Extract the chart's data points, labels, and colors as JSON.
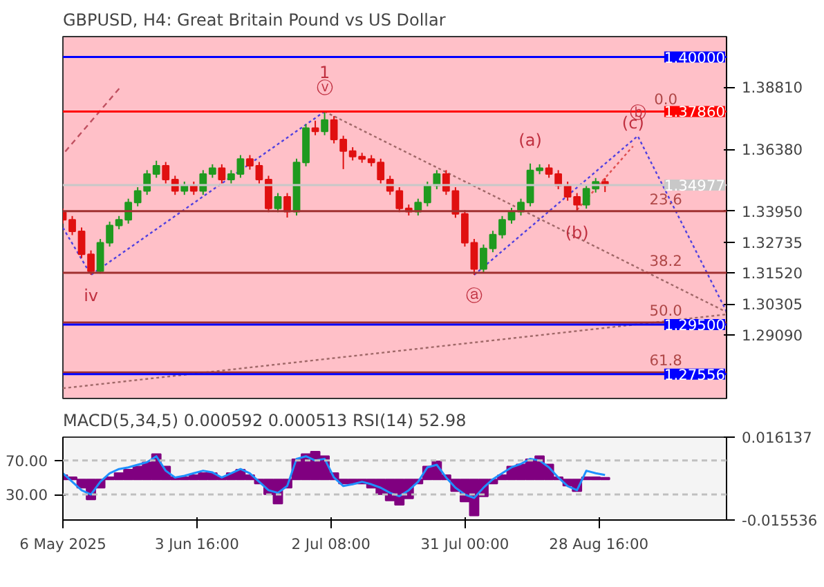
{
  "chart_data": [
    {
      "type": "candlestick",
      "title": "GBPUSD, H4:  Great Britain Pound vs US Dollar",
      "x": [
        "2025-05-06",
        "2025-05-08",
        "2025-05-10",
        "2025-05-12",
        "2025-05-14",
        "2025-05-16",
        "2025-05-18",
        "2025-05-20",
        "2025-05-22",
        "2025-05-24",
        "2025-05-26",
        "2025-05-28",
        "2025-05-30",
        "2025-06-01",
        "2025-06-03",
        "2025-06-05",
        "2025-06-07",
        "2025-06-09",
        "2025-06-11",
        "2025-06-13",
        "2025-06-15",
        "2025-06-17",
        "2025-06-19",
        "2025-06-21",
        "2025-06-23",
        "2025-06-25",
        "2025-06-27",
        "2025-06-29",
        "2025-07-01",
        "2025-07-03",
        "2025-07-05",
        "2025-07-07",
        "2025-07-09",
        "2025-07-11",
        "2025-07-13",
        "2025-07-15",
        "2025-07-17",
        "2025-07-19",
        "2025-07-21",
        "2025-07-23",
        "2025-07-25",
        "2025-07-27",
        "2025-07-29",
        "2025-07-31",
        "2025-08-02",
        "2025-08-04",
        "2025-08-06",
        "2025-08-08",
        "2025-08-10",
        "2025-08-12",
        "2025-08-14",
        "2025-08-16",
        "2025-08-18",
        "2025-08-20",
        "2025-08-22",
        "2025-08-24",
        "2025-08-26",
        "2025-08-28",
        "2025-08-30"
      ],
      "ohlc": [
        [
          1.339,
          1.3405,
          1.3346,
          1.3361
        ],
        [
          1.3361,
          1.3376,
          1.3301,
          1.3316
        ],
        [
          1.3316,
          1.3331,
          1.3211,
          1.3226
        ],
        [
          1.3226,
          1.3241,
          1.3145,
          1.3159
        ],
        [
          1.3159,
          1.3286,
          1.315,
          1.3271
        ],
        [
          1.3271,
          1.3354,
          1.3256,
          1.3339
        ],
        [
          1.3339,
          1.3376,
          1.3324,
          1.3361
        ],
        [
          1.3361,
          1.3444,
          1.3346,
          1.3429
        ],
        [
          1.3429,
          1.3489,
          1.3414,
          1.3474
        ],
        [
          1.3474,
          1.3556,
          1.3459,
          1.3541
        ],
        [
          1.3541,
          1.3593,
          1.3526,
          1.3573
        ],
        [
          1.3573,
          1.3588,
          1.3504,
          1.3519
        ],
        [
          1.3519,
          1.3534,
          1.3459,
          1.3474
        ],
        [
          1.3474,
          1.3511,
          1.3459,
          1.3496
        ],
        [
          1.3496,
          1.3511,
          1.3459,
          1.3474
        ],
        [
          1.3474,
          1.3556,
          1.3459,
          1.3541
        ],
        [
          1.3541,
          1.3579,
          1.3526,
          1.3564
        ],
        [
          1.3564,
          1.3579,
          1.3504,
          1.3519
        ],
        [
          1.3519,
          1.3556,
          1.3504,
          1.3541
        ],
        [
          1.3541,
          1.3615,
          1.3526,
          1.36
        ],
        [
          1.36,
          1.3615,
          1.3558,
          1.3573
        ],
        [
          1.3573,
          1.3588,
          1.3504,
          1.3519
        ],
        [
          1.3519,
          1.3534,
          1.3391,
          1.3406
        ],
        [
          1.3406,
          1.3466,
          1.3391,
          1.3451
        ],
        [
          1.3451,
          1.3466,
          1.337,
          1.3393
        ],
        [
          1.3393,
          1.3601,
          1.3378,
          1.3586
        ],
        [
          1.3586,
          1.3736,
          1.3571,
          1.3721
        ],
        [
          1.3721,
          1.375,
          1.3693,
          1.3708
        ],
        [
          1.3708,
          1.3786,
          1.3693,
          1.3753
        ],
        [
          1.3753,
          1.3768,
          1.3661,
          1.3676
        ],
        [
          1.3676,
          1.3691,
          1.356,
          1.3631
        ],
        [
          1.3631,
          1.3646,
          1.3594,
          1.3609
        ],
        [
          1.3609,
          1.3624,
          1.3585,
          1.36
        ],
        [
          1.36,
          1.3615,
          1.3571,
          1.3586
        ],
        [
          1.3586,
          1.3601,
          1.3504,
          1.3519
        ],
        [
          1.3519,
          1.3534,
          1.3459,
          1.3474
        ],
        [
          1.3474,
          1.3489,
          1.3391,
          1.3406
        ],
        [
          1.3406,
          1.3421,
          1.3378,
          1.3393
        ],
        [
          1.3393,
          1.3444,
          1.3378,
          1.3429
        ],
        [
          1.3429,
          1.3511,
          1.3414,
          1.3496
        ],
        [
          1.3496,
          1.3556,
          1.3481,
          1.3541
        ],
        [
          1.3541,
          1.3556,
          1.3459,
          1.3474
        ],
        [
          1.3474,
          1.3489,
          1.3369,
          1.3384
        ],
        [
          1.3384,
          1.3399,
          1.3256,
          1.3271
        ],
        [
          1.3271,
          1.3286,
          1.3145,
          1.3168
        ],
        [
          1.3168,
          1.3264,
          1.3153,
          1.3249
        ],
        [
          1.3249,
          1.3318,
          1.3234,
          1.3303
        ],
        [
          1.3303,
          1.3376,
          1.3288,
          1.3361
        ],
        [
          1.3361,
          1.3408,
          1.3346,
          1.3393
        ],
        [
          1.3393,
          1.3444,
          1.3378,
          1.3429
        ],
        [
          1.3429,
          1.3582,
          1.3414,
          1.3555
        ],
        [
          1.3555,
          1.3579,
          1.354,
          1.3564
        ],
        [
          1.3564,
          1.3579,
          1.3526,
          1.3541
        ],
        [
          1.3541,
          1.3556,
          1.3481,
          1.3496
        ],
        [
          1.3496,
          1.3511,
          1.3436,
          1.3451
        ],
        [
          1.3451,
          1.3466,
          1.3393,
          1.342
        ],
        [
          1.342,
          1.3498,
          1.3405,
          1.3483
        ],
        [
          1.3483,
          1.3525,
          1.3468,
          1.351
        ],
        [
          1.351,
          1.3525,
          1.347,
          1.3497
        ]
      ],
      "series": [
        {
          "type": "line",
          "x": [
            "2025-05-06",
            "2025-05-12",
            "2025-07-01"
          ],
          "values": [
            1.333,
            1.3145,
            1.3786
          ],
          "color": "#5040e0",
          "line_style": "dotted"
        },
        {
          "type": "line",
          "x": [
            "2025-08-02",
            "2025-09-06",
            "2025-09-25"
          ],
          "values": [
            1.3145,
            1.369,
            1.3001
          ],
          "color": "#5040e0",
          "line_style": "dotted"
        },
        {
          "type": "line",
          "x": [
            "2025-08-24",
            "2025-09-05"
          ],
          "values": [
            1.34,
            1.365
          ],
          "color": "#e05050",
          "line_style": "dotted"
        },
        {
          "type": "line",
          "x": [
            "2025-07-01",
            "2025-09-25"
          ],
          "values": [
            1.3786,
            1.2999
          ],
          "color": "#a06868",
          "line_style": "dotted"
        },
        {
          "type": "line",
          "x": [
            "2025-05-06",
            "2025-09-25"
          ],
          "values": [
            1.27,
            1.299
          ],
          "color": "#a06868",
          "line_style": "dotted"
        },
        {
          "type": "line",
          "x": [
            "2025-05-06T12:00",
            "2025-05-18T12:00"
          ],
          "values": [
            1.3629,
            1.3886
          ],
          "color": "#c05060",
          "line_style": "dashed"
        }
      ],
      "xlim": [
        "2025-05-06",
        "2025-09-25"
      ],
      "ylim": [
        1.266,
        1.408
      ],
      "yticks": [
        {
          "value": 1.3881,
          "label": "1.38810"
        },
        {
          "value": 1.3638,
          "label": "1.36380"
        },
        {
          "value": 1.3395,
          "label": "1.33950"
        },
        {
          "value": 1.32735,
          "label": "1.32735"
        },
        {
          "value": 1.3152,
          "label": "1.31520"
        },
        {
          "value": 1.30305,
          "label": "1.30305"
        },
        {
          "value": 1.2909,
          "label": "1.29090"
        }
      ],
      "tick_labels": "y",
      "grid": false,
      "ref_lines": [
        {
          "axis": "y",
          "value": 1.4,
          "label": "1.40000",
          "color": "#0000ff"
        },
        {
          "axis": "y",
          "value": 1.3786,
          "label": "1.37860",
          "color": "#ff0000"
        },
        {
          "axis": "y",
          "value": 1.34977,
          "label": "1.34977",
          "color": "#c8c8c8"
        },
        {
          "axis": "y",
          "value": 1.3395,
          "color": "#a03030"
        },
        {
          "axis": "y",
          "value": 1.3153,
          "color": "#a03030"
        },
        {
          "axis": "y",
          "value": 1.2958,
          "color": "#a03030"
        },
        {
          "axis": "y",
          "value": 1.2762,
          "color": "#a03030"
        },
        {
          "axis": "y",
          "value": 1.295,
          "label": "1.29500",
          "color": "#0000ff"
        },
        {
          "axis": "y",
          "value": 1.27556,
          "label": "1.27556",
          "color": "#0000ff"
        }
      ],
      "annotations": [
        {
          "text": "0.0",
          "x": "2025-09-12",
          "y": 1.3786
        },
        {
          "text": "23.6",
          "x": "2025-09-12",
          "y": 1.3395
        },
        {
          "text": "38.2",
          "x": "2025-09-12",
          "y": 1.3153
        },
        {
          "text": "50.0",
          "x": "2025-09-12",
          "y": 1.2958
        },
        {
          "text": "61.8",
          "x": "2025-09-12",
          "y": 1.2762
        },
        {
          "text": "ⓥ",
          "x": "2025-07-01",
          "y": 1.3786
        },
        {
          "text": "1",
          "x": "2025-07-01",
          "y": 1.3786
        },
        {
          "text": "iv",
          "x": "2025-05-12",
          "y": 1.3145
        },
        {
          "text": "ⓐ",
          "x": "2025-08-02",
          "y": 1.3145
        },
        {
          "text": "(a)",
          "x": "2025-08-14",
          "y": 1.3582
        },
        {
          "text": "(b)",
          "x": "2025-08-24",
          "y": 1.3393
        },
        {
          "text": "(c)",
          "x": "2025-09-05",
          "y": 1.365
        },
        {
          "text": "ⓑ",
          "x": "2025-09-06",
          "y": 1.369
        }
      ]
    },
    {
      "type": "bar",
      "title": "MACD(5,34,5) 0.000592 0.000513 RSI(14) 52.98",
      "x": [
        "2025-05-06",
        "2025-05-08",
        "2025-05-10",
        "2025-05-12",
        "2025-05-14",
        "2025-05-16",
        "2025-05-18",
        "2025-05-20",
        "2025-05-22",
        "2025-05-24",
        "2025-05-26",
        "2025-05-28",
        "2025-05-30",
        "2025-06-01",
        "2025-06-03",
        "2025-06-05",
        "2025-06-07",
        "2025-06-09",
        "2025-06-11",
        "2025-06-13",
        "2025-06-15",
        "2025-06-17",
        "2025-06-19",
        "2025-06-21",
        "2025-06-23",
        "2025-06-25",
        "2025-06-27",
        "2025-06-29",
        "2025-07-01",
        "2025-07-03",
        "2025-07-05",
        "2025-07-07",
        "2025-07-09",
        "2025-07-11",
        "2025-07-13",
        "2025-07-15",
        "2025-07-17",
        "2025-07-19",
        "2025-07-21",
        "2025-07-23",
        "2025-07-25",
        "2025-07-27",
        "2025-07-29",
        "2025-07-31",
        "2025-08-02",
        "2025-08-04",
        "2025-08-06",
        "2025-08-08",
        "2025-08-10",
        "2025-08-12",
        "2025-08-14",
        "2025-08-16",
        "2025-08-18",
        "2025-08-20",
        "2025-08-22",
        "2025-08-24",
        "2025-08-26",
        "2025-08-28",
        "2025-08-30"
      ],
      "series": [
        {
          "type": "bar",
          "color": "#800080",
          "values": [
            0.0016,
            0.0008,
            -0.0032,
            -0.0077,
            -0.0032,
            0.0008,
            0.0024,
            0.0037,
            0.0049,
            0.0065,
            0.0097,
            0.0049,
            0.0008,
            0.0008,
            0.0016,
            0.0024,
            0.0024,
            0.0008,
            0.0024,
            0.0037,
            0.0016,
            -0.0016,
            -0.0057,
            -0.0093,
            -0.0032,
            0.0077,
            0.0097,
            0.0106,
            0.0089,
            0.0024,
            -0.0016,
            -0.0016,
            -0.0016,
            -0.0032,
            -0.0057,
            -0.0081,
            -0.0097,
            -0.0073,
            -0.0016,
            0.0049,
            0.0069,
            0.0016,
            -0.0045,
            -0.0085,
            -0.0138,
            -0.0065,
            -0.0016,
            0.0016,
            0.0049,
            0.0057,
            0.0077,
            0.0089,
            0.0057,
            0.0008,
            -0.0024,
            -0.0045,
            0.0008,
            0.0008,
            0.0006
          ]
        },
        {
          "type": "line",
          "axis": "y2",
          "color": "#1e90ff",
          "values": [
            55,
            45,
            35,
            30,
            45,
            55,
            60,
            62,
            65,
            68,
            75,
            58,
            50,
            52,
            55,
            58,
            56,
            50,
            55,
            60,
            55,
            45,
            35,
            32,
            40,
            72,
            75,
            70,
            72,
            50,
            40,
            42,
            45,
            42,
            38,
            32,
            28,
            35,
            45,
            62,
            65,
            50,
            38,
            30,
            26,
            38,
            48,
            55,
            62,
            66,
            72,
            70,
            62,
            50,
            40,
            35,
            58,
            55,
            53
          ]
        }
      ],
      "xlim": [
        "2025-05-06",
        "2025-09-25"
      ],
      "xticks": [
        {
          "value": "2025-05-06",
          "label": "6 May 2025"
        },
        {
          "value": "2025-06-03T16:00",
          "label": "3 Jun 16:00"
        },
        {
          "value": "2025-07-02T08:00",
          "label": "2 Jul 08:00"
        },
        {
          "value": "2025-07-31T00:00",
          "label": "31 Jul 00:00"
        },
        {
          "value": "2025-08-28T16:00",
          "label": "28 Aug 16:00"
        }
      ],
      "ylim": [
        -0.015536,
        0.016137
      ],
      "yticks": [
        {
          "value": 0.016137,
          "label": "0.016137"
        },
        {
          "value": -0.015536,
          "label": "-0.015536"
        }
      ],
      "y2lim": [
        0,
        97.5
      ],
      "y2ticks": [
        {
          "value": 70,
          "label": "70.00"
        },
        {
          "value": 30,
          "label": "30.00"
        }
      ],
      "grid": false,
      "ref_lines": [
        {
          "axis": "y2",
          "value": 70,
          "color": "#c0c0c0",
          "line_style": "dashed"
        },
        {
          "axis": "y2",
          "value": 30,
          "color": "#c0c0c0",
          "line_style": "dashed"
        }
      ]
    }
  ]
}
